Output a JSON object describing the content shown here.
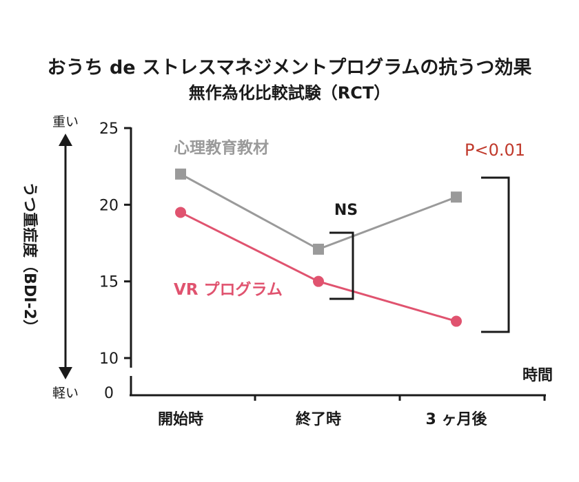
{
  "chart_data": {
    "type": "line",
    "title": "おうち de ストレスマネジメントプログラムの抗うつ効果",
    "subtitle": "無作為化比較試験（RCT）",
    "categories": [
      "開始時",
      "終了時",
      "3 ヶ月後"
    ],
    "ylabel": "うつ重症度（BDI-2）",
    "xlabel": "時間",
    "y_top_label": "重い",
    "y_bottom_label": "軽い",
    "ylim": [
      10,
      25
    ],
    "yticks": [
      "25",
      "20",
      "15",
      "10"
    ],
    "y_zero_label": "0",
    "axis_break": true,
    "series": [
      {
        "name": "心理教育教材",
        "values": [
          22.0,
          17.1,
          20.5
        ],
        "color": "#9a9a9a",
        "marker": "square"
      },
      {
        "name": "VR プログラム",
        "values": [
          19.5,
          15.0,
          12.4
        ],
        "color": "#e0536f",
        "marker": "circle"
      }
    ],
    "annotations": [
      {
        "text": "NS",
        "between": "終了時"
      },
      {
        "text": "P<0.01",
        "between": "3 ヶ月後",
        "color": "#c0392b"
      }
    ]
  }
}
